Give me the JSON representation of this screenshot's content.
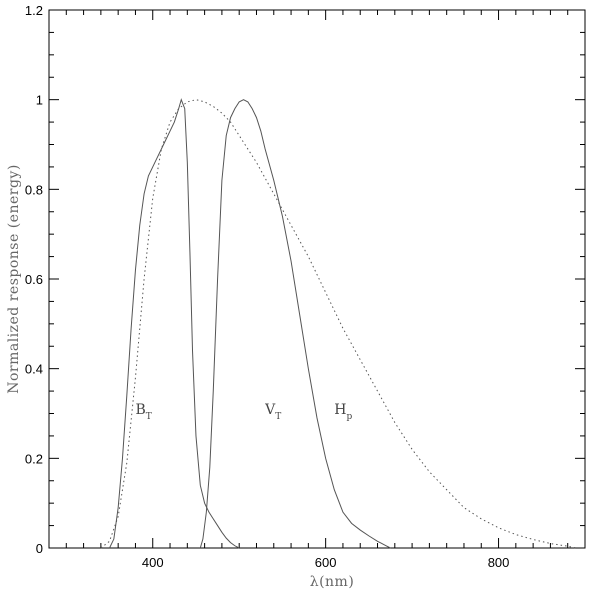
{
  "chart_data": {
    "type": "line",
    "title": "",
    "xlabel": "λ(nm)",
    "ylabel": "Normalized response (energy)",
    "xlim": [
      280,
      900
    ],
    "ylim": [
      0,
      1.2
    ],
    "xticks": [
      400,
      600,
      800
    ],
    "yticks": [
      0,
      0.2,
      0.4,
      0.6,
      0.8,
      1,
      1.2
    ],
    "ytick_labels": [
      "0",
      "0.2",
      "0.4",
      "0.6",
      "0.8",
      "1",
      "1.2"
    ],
    "grid": false,
    "series": [
      {
        "name": "B",
        "subscript": "T",
        "style": "solid",
        "color": "#555555",
        "label_pos": [
          380,
          0.31
        ],
        "x": [
          350,
          355,
          360,
          365,
          370,
          375,
          380,
          385,
          390,
          395,
          400,
          405,
          410,
          415,
          420,
          425,
          430,
          433,
          435,
          437,
          440,
          443,
          446,
          450,
          455,
          460,
          465,
          470,
          475,
          480,
          485,
          490,
          495,
          500
        ],
        "y": [
          0,
          0.02,
          0.09,
          0.2,
          0.34,
          0.49,
          0.62,
          0.72,
          0.79,
          0.83,
          0.85,
          0.87,
          0.89,
          0.91,
          0.93,
          0.95,
          0.98,
          1.0,
          0.99,
          0.98,
          0.86,
          0.66,
          0.44,
          0.25,
          0.14,
          0.1,
          0.08,
          0.065,
          0.05,
          0.035,
          0.022,
          0.012,
          0.005,
          0
        ]
      },
      {
        "name": "V",
        "subscript": "T",
        "style": "solid",
        "color": "#555555",
        "label_pos": [
          530,
          0.31
        ],
        "x": [
          455,
          458,
          462,
          466,
          470,
          475,
          480,
          485,
          490,
          495,
          500,
          505,
          510,
          515,
          520,
          525,
          530,
          540,
          550,
          560,
          570,
          580,
          590,
          600,
          610,
          620,
          630,
          640,
          650,
          660,
          670,
          675
        ],
        "y": [
          0,
          0.02,
          0.08,
          0.18,
          0.35,
          0.6,
          0.82,
          0.92,
          0.96,
          0.98,
          0.995,
          1.0,
          0.995,
          0.98,
          0.96,
          0.93,
          0.89,
          0.82,
          0.74,
          0.64,
          0.52,
          0.4,
          0.29,
          0.2,
          0.13,
          0.08,
          0.055,
          0.04,
          0.027,
          0.015,
          0.005,
          0
        ]
      },
      {
        "name": "H",
        "subscript": "p",
        "style": "dotted",
        "color": "#555555",
        "label_pos": [
          610,
          0.31
        ],
        "x": [
          340,
          350,
          360,
          370,
          380,
          390,
          400,
          410,
          420,
          430,
          440,
          450,
          460,
          470,
          480,
          490,
          500,
          520,
          540,
          560,
          580,
          600,
          620,
          640,
          660,
          680,
          700,
          720,
          740,
          760,
          780,
          800,
          820,
          840,
          860,
          880,
          890
        ],
        "y": [
          0,
          0.015,
          0.07,
          0.19,
          0.38,
          0.6,
          0.78,
          0.89,
          0.95,
          0.98,
          0.995,
          1.0,
          0.995,
          0.985,
          0.97,
          0.95,
          0.92,
          0.86,
          0.79,
          0.72,
          0.65,
          0.57,
          0.49,
          0.42,
          0.35,
          0.28,
          0.22,
          0.17,
          0.13,
          0.09,
          0.065,
          0.045,
          0.03,
          0.019,
          0.01,
          0.004,
          0
        ]
      }
    ]
  }
}
